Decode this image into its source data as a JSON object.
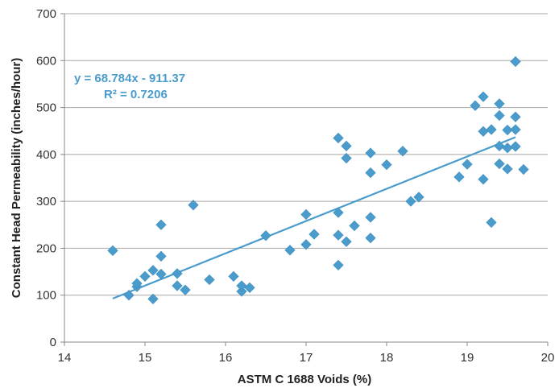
{
  "chart_data": {
    "type": "scatter",
    "title": "",
    "xlabel": "ASTM C 1688 Voids (%)",
    "ylabel": "Constant Head Permeability (inches/hour)",
    "xlim": [
      14,
      20
    ],
    "ylim": [
      0,
      700
    ],
    "x_ticks": [
      "14",
      "15",
      "16",
      "17",
      "18",
      "19",
      "20"
    ],
    "y_ticks": [
      "0",
      "100",
      "200",
      "300",
      "400",
      "500",
      "600",
      "700"
    ],
    "grid": "horizontal",
    "marker": "diamond",
    "color": "#4a9ccc",
    "trendline": {
      "slope": 68.784,
      "intercept": -911.37,
      "x_range": [
        14.6,
        19.6
      ],
      "equation": "y = 68.784x - 911.37",
      "r_squared": "R² = 0.7206"
    },
    "points": [
      [
        14.6,
        195
      ],
      [
        14.8,
        100
      ],
      [
        14.9,
        118
      ],
      [
        14.9,
        125
      ],
      [
        15.0,
        140
      ],
      [
        15.1,
        92
      ],
      [
        15.1,
        153
      ],
      [
        15.2,
        145
      ],
      [
        15.2,
        183
      ],
      [
        15.2,
        250
      ],
      [
        15.4,
        120
      ],
      [
        15.4,
        146
      ],
      [
        15.5,
        111
      ],
      [
        15.6,
        292
      ],
      [
        15.8,
        133
      ],
      [
        16.1,
        140
      ],
      [
        16.2,
        108
      ],
      [
        16.2,
        120
      ],
      [
        16.3,
        116
      ],
      [
        16.5,
        227
      ],
      [
        16.8,
        196
      ],
      [
        17.0,
        208
      ],
      [
        17.0,
        272
      ],
      [
        17.1,
        230
      ],
      [
        17.4,
        164
      ],
      [
        17.4,
        228
      ],
      [
        17.4,
        276
      ],
      [
        17.4,
        435
      ],
      [
        17.5,
        214
      ],
      [
        17.5,
        392
      ],
      [
        17.5,
        418
      ],
      [
        17.6,
        248
      ],
      [
        17.8,
        222
      ],
      [
        17.8,
        266
      ],
      [
        17.8,
        361
      ],
      [
        17.8,
        403
      ],
      [
        18.0,
        378
      ],
      [
        18.2,
        407
      ],
      [
        18.3,
        300
      ],
      [
        18.4,
        309
      ],
      [
        18.9,
        352
      ],
      [
        19.0,
        379
      ],
      [
        19.1,
        504
      ],
      [
        19.2,
        347
      ],
      [
        19.2,
        449
      ],
      [
        19.2,
        523
      ],
      [
        19.3,
        255
      ],
      [
        19.3,
        453
      ],
      [
        19.4,
        380
      ],
      [
        19.4,
        418
      ],
      [
        19.4,
        483
      ],
      [
        19.4,
        508
      ],
      [
        19.5,
        369
      ],
      [
        19.5,
        414
      ],
      [
        19.5,
        452
      ],
      [
        19.6,
        417
      ],
      [
        19.6,
        453
      ],
      [
        19.6,
        480
      ],
      [
        19.6,
        598
      ],
      [
        19.7,
        368
      ]
    ]
  }
}
